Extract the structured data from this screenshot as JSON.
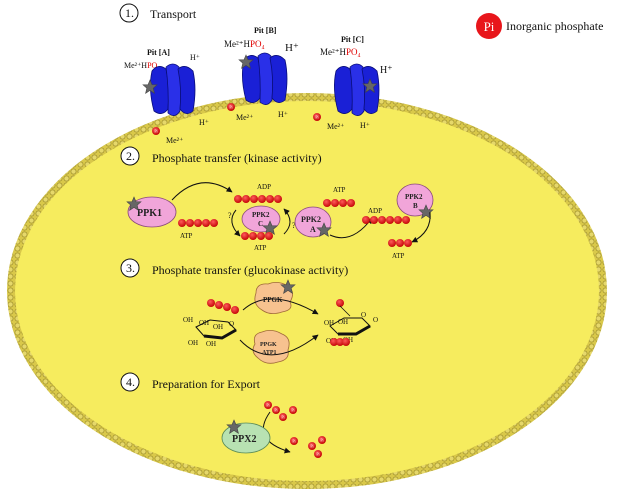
{
  "legend": {
    "pi_symbol": "Pi",
    "label": "Inorganic phosphate",
    "pi_color": "#e8161b"
  },
  "colors": {
    "cell_fill": "#f6ec5e",
    "membrane": "#b5a43a",
    "transporter": "#1a20d6",
    "ppk_pink": "#f1a5d9",
    "ppgk_tan": "#f7c28f",
    "ppx_green": "#b8e2b2"
  },
  "steps": [
    {
      "num": "1.",
      "title": "Transport"
    },
    {
      "num": "2.",
      "title": "Phosphate transfer (kinase activity)"
    },
    {
      "num": "3.",
      "title": "Phosphate transfer (glucokinase activity)"
    },
    {
      "num": "4.",
      "title": "Preparation for Export"
    }
  ],
  "transport": {
    "pit_a": "Pit [A]",
    "pit_b": "Pit [B]",
    "pit_c": "Pit [C]",
    "me2hpo4": "Me²⁺HPO₄",
    "me_part": "Me²⁺H",
    "po_part": "PO₄",
    "h_plus": "H⁺",
    "me2": "Me²⁺",
    "pi": "Pi"
  },
  "kinase": {
    "ppk1": "PPK1",
    "ppk2c_line1": "PPK2",
    "ppk2c_line2": "C",
    "ppk2a_line1": "PPK2",
    "ppk2a_line2": "A",
    "ppk2b_line1": "PPK2",
    "ppk2b_line2": "B",
    "adp": "ADP",
    "atp": "ATP",
    "q1": "?",
    "q2": "?"
  },
  "glucokinase": {
    "ppgk": "PPGK",
    "ppgk_atp_line1": "PPGK",
    "ppgk_atp_line2": "ATP1",
    "oh": "OH",
    "o": "O",
    "ring_o": "O"
  },
  "export": {
    "ppx2": "PPX2",
    "pi": "Pi"
  }
}
